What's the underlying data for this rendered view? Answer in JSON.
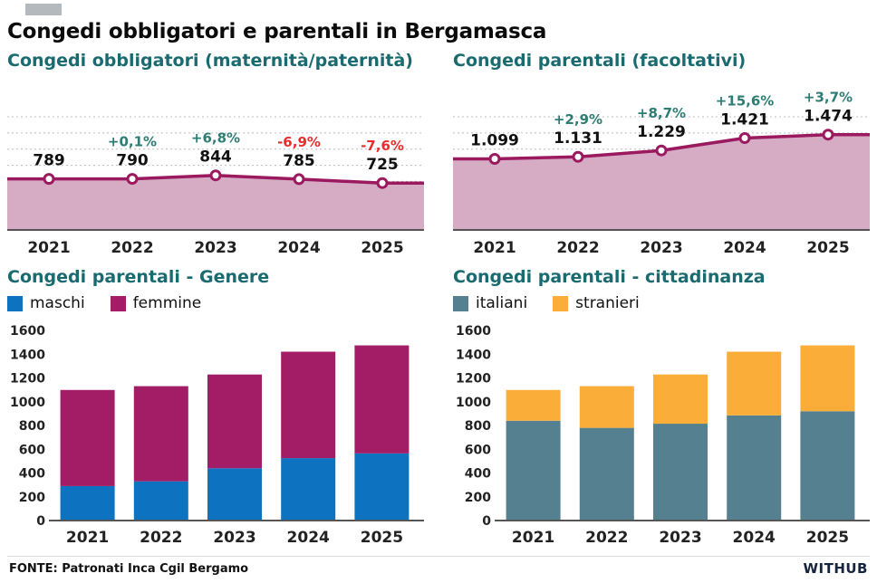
{
  "title": "Congedi obbligatori e parentali in Bergamasca",
  "source": "FONTE: Patronati Inca Cgil Bergamo",
  "brand": "WITHUB",
  "colors": {
    "heading": "#1a6b70",
    "line": "#9b195e",
    "area_fill": "#d6abc4",
    "pct_up": "#2e7d74",
    "pct_down": "#e62e2e",
    "maschi": "#0d72c0",
    "femmine": "#a21d66",
    "italiani": "#54808f",
    "stranieri": "#fbad3a",
    "grid": "#bcbcbc",
    "axis": "#555555",
    "text": "#111111"
  },
  "chart_data": [
    {
      "id": "obbligatori",
      "type": "area",
      "title": "Congedi obbligatori (maternità/paternità)",
      "x": [
        "2021",
        "2022",
        "2023",
        "2024",
        "2025"
      ],
      "values": [
        789,
        790,
        844,
        785,
        725
      ],
      "value_labels": [
        "789",
        "790",
        "844",
        "785",
        "725"
      ],
      "pct_labels": [
        null,
        "+0,1%",
        "+6,8%",
        "-6,9%",
        "-7,6%"
      ],
      "pct_trend": [
        null,
        "up",
        "up",
        "down",
        "down"
      ],
      "ylim": [
        0,
        2100
      ],
      "grid": true,
      "legend_position": "none"
    },
    {
      "id": "parentali",
      "type": "area",
      "title": "Congedi parentali (facoltativi)",
      "x": [
        "2021",
        "2022",
        "2023",
        "2024",
        "2025"
      ],
      "values": [
        1099,
        1131,
        1229,
        1421,
        1474
      ],
      "value_labels": [
        "1.099",
        "1.131",
        "1.229",
        "1.421",
        "1.474"
      ],
      "pct_labels": [
        null,
        "+2,9%",
        "+8,7%",
        "+15,6%",
        "+3,7%"
      ],
      "pct_trend": [
        null,
        "up",
        "up",
        "up",
        "up"
      ],
      "ylim": [
        0,
        2100
      ],
      "grid": true,
      "legend_position": "none"
    },
    {
      "id": "genere",
      "type": "stacked-bar",
      "title": "Congedi parentali - Genere",
      "categories": [
        "2021",
        "2022",
        "2023",
        "2024",
        "2025"
      ],
      "series": [
        {
          "name": "maschi",
          "color_key": "maschi",
          "values": [
            290,
            330,
            440,
            525,
            565
          ]
        },
        {
          "name": "femmine",
          "color_key": "femmine",
          "values": [
            809,
            801,
            789,
            896,
            909
          ]
        }
      ],
      "totals": [
        1099,
        1131,
        1229,
        1421,
        1474
      ],
      "ylim": [
        0,
        1600
      ],
      "ytick_step": 200,
      "grid": false,
      "legend_position": "top-left"
    },
    {
      "id": "cittadinanza",
      "type": "stacked-bar",
      "title": "Congedi parentali - cittadinanza",
      "categories": [
        "2021",
        "2022",
        "2023",
        "2024",
        "2025"
      ],
      "series": [
        {
          "name": "italiani",
          "color_key": "italiani",
          "values": [
            840,
            780,
            815,
            885,
            920
          ]
        },
        {
          "name": "stranieri",
          "color_key": "stranieri",
          "values": [
            259,
            351,
            414,
            536,
            554
          ]
        }
      ],
      "totals": [
        1099,
        1131,
        1229,
        1421,
        1474
      ],
      "ylim": [
        0,
        1600
      ],
      "ytick_step": 200,
      "grid": false,
      "legend_position": "top-left"
    }
  ]
}
